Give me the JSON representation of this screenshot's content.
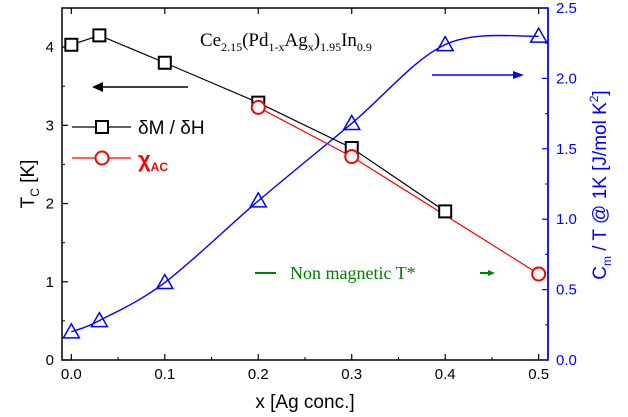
{
  "chart_data": {
    "type": "scatter",
    "title": "Ce2.15(Pd1-xAgx)1.95In0.9",
    "formula": {
      "parts": [
        {
          "t": "Ce",
          "s": ""
        },
        {
          "t": "2.15",
          "s": "sub"
        },
        {
          "t": "(Pd",
          "s": ""
        },
        {
          "t": "1-x",
          "s": "sub"
        },
        {
          "t": "Ag",
          "s": ""
        },
        {
          "t": "x",
          "s": "sub"
        },
        {
          "t": ")",
          "s": ""
        },
        {
          "t": "1.95",
          "s": "sub"
        },
        {
          "t": "In",
          "s": ""
        },
        {
          "t": "0.9",
          "s": "sub"
        }
      ]
    },
    "xlabel": "x [Ag conc.]",
    "ylabel_left": {
      "main": "T",
      "sub": "C",
      "rest": " [K]"
    },
    "ylabel_right": {
      "main": "C",
      "sub": "m",
      "rest": " / T @ 1K  [J/mol K",
      "sup": "2",
      "end": "]"
    },
    "xlim": [
      -0.01,
      0.51
    ],
    "ylim_left": [
      0,
      4.5
    ],
    "ylim_right": [
      0,
      2.5
    ],
    "xticks": [
      "0.0",
      "0.1",
      "0.2",
      "0.3",
      "0.4",
      "0.5"
    ],
    "xtick_values": [
      0.0,
      0.1,
      0.2,
      0.3,
      0.4,
      0.5
    ],
    "yticks_left": [
      "0",
      "1",
      "2",
      "3",
      "4"
    ],
    "yticks_left_values": [
      0,
      1,
      2,
      3,
      4
    ],
    "yticks_right": [
      "0.0",
      "0.5",
      "1.0",
      "1.5",
      "2.0",
      "2.5"
    ],
    "yticks_right_values": [
      0.0,
      0.5,
      1.0,
      1.5,
      2.0,
      2.5
    ],
    "series": [
      {
        "name": "δM / δH",
        "axis": "left",
        "marker": "square",
        "color": "#000000",
        "x": [
          0.0,
          0.03,
          0.1,
          0.2,
          0.3,
          0.4
        ],
        "y": [
          4.03,
          4.15,
          3.8,
          3.29,
          2.71,
          1.9
        ]
      },
      {
        "name": "χAC",
        "name_main": "χ",
        "name_sub": "AC",
        "axis": "left",
        "marker": "circle",
        "color": "#ff0000",
        "x": [
          0.2,
          0.3,
          0.5
        ],
        "y": [
          3.23,
          2.6,
          1.1
        ]
      },
      {
        "name": "",
        "axis": "right",
        "marker": "triangle",
        "color": "#0000ff",
        "x": [
          0.0,
          0.03,
          0.1,
          0.2,
          0.3,
          0.4,
          0.5
        ],
        "y": [
          0.2,
          0.28,
          0.55,
          1.13,
          1.68,
          2.24,
          2.3
        ]
      }
    ],
    "annotation": {
      "text": "Non magnetic T*",
      "color": "#008000"
    },
    "grid": false,
    "legend_position": "left"
  }
}
